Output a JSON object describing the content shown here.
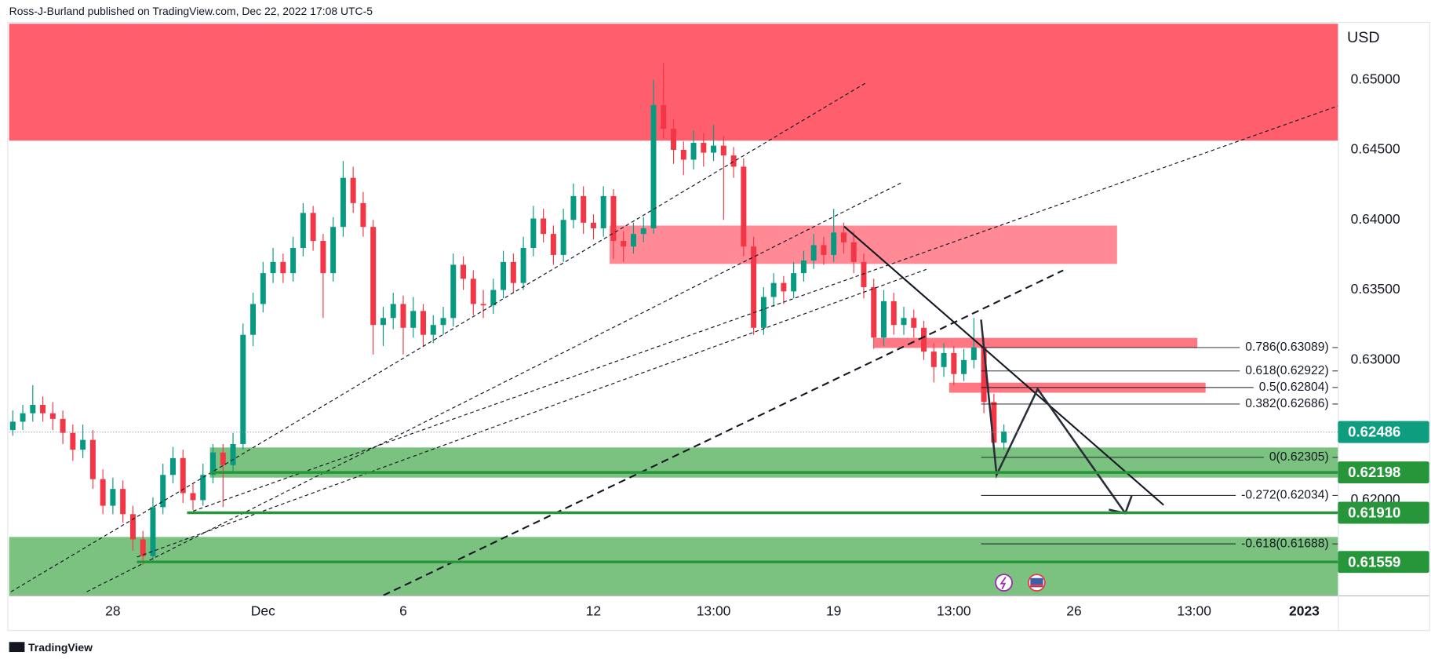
{
  "header": "Ross-J-Burland published on TradingView.com, Dec 22, 2022 17:08 UTC-5",
  "footer": "TradingView",
  "chart_data": {
    "type": "candlestick",
    "y_axis_label": "USD",
    "up_color": "#089981",
    "down_color": "#f23645",
    "ylim": [
      0.6132,
      0.654
    ],
    "yticks": [
      {
        "value": 0.65,
        "label": "0.65000"
      },
      {
        "value": 0.645,
        "label": "0.64500"
      },
      {
        "value": 0.64,
        "label": "0.64000"
      },
      {
        "value": 0.635,
        "label": "0.63500"
      },
      {
        "value": 0.63,
        "label": "0.63000"
      },
      {
        "value": 0.62,
        "label": "0.62000"
      }
    ],
    "categories": [
      null,
      null,
      null,
      null,
      null,
      null,
      null,
      null,
      null,
      null,
      "28",
      null,
      null,
      null,
      null,
      null,
      null,
      null,
      null,
      null,
      null,
      null,
      null,
      null,
      null,
      "Dec",
      null,
      null,
      null,
      null,
      null,
      null,
      null,
      null,
      null,
      null,
      null,
      null,
      null,
      "6",
      null,
      null,
      null,
      null,
      null,
      null,
      null,
      null,
      null,
      null,
      null,
      null,
      null,
      null,
      null,
      null,
      null,
      null,
      "12",
      null,
      null,
      null,
      null,
      null,
      null,
      null,
      null,
      null,
      null,
      null,
      "13:00",
      null,
      null,
      null,
      null,
      null,
      null,
      null,
      null,
      null,
      null,
      null,
      "19",
      null,
      null,
      null,
      null,
      null,
      null,
      null,
      null,
      null,
      null,
      null,
      "13:00",
      null,
      null,
      null,
      null,
      null,
      null,
      null,
      null,
      null,
      null,
      null,
      "26",
      null,
      null,
      null,
      null,
      null,
      null,
      null,
      null,
      null,
      null,
      null,
      "13:00",
      null,
      null,
      null,
      null,
      null,
      null,
      null,
      null,
      null,
      null,
      "2023",
      null
    ],
    "ohlc": [
      [
        0.625,
        0.6264,
        0.6246,
        0.6256
      ],
      [
        0.6256,
        0.6268,
        0.625,
        0.6262
      ],
      [
        0.6262,
        0.6282,
        0.6256,
        0.6268
      ],
      [
        0.6268,
        0.6274,
        0.6256,
        0.6262
      ],
      [
        0.6262,
        0.627,
        0.625,
        0.6258
      ],
      [
        0.6258,
        0.6264,
        0.624,
        0.6248
      ],
      [
        0.6248,
        0.6254,
        0.6228,
        0.6236
      ],
      [
        0.6236,
        0.6254,
        0.623,
        0.6243
      ],
      [
        0.6243,
        0.625,
        0.6208,
        0.6215
      ],
      [
        0.6215,
        0.6222,
        0.619,
        0.6196
      ],
      [
        0.6196,
        0.6216,
        0.619,
        0.6208
      ],
      [
        0.6208,
        0.6214,
        0.6184,
        0.619
      ],
      [
        0.619,
        0.6196,
        0.6164,
        0.6172
      ],
      [
        0.6172,
        0.6178,
        0.6154,
        0.616
      ],
      [
        0.616,
        0.6202,
        0.6156,
        0.6195
      ],
      [
        0.6195,
        0.6226,
        0.619,
        0.6218
      ],
      [
        0.6218,
        0.6238,
        0.6212,
        0.623
      ],
      [
        0.623,
        0.6236,
        0.6198,
        0.6205
      ],
      [
        0.6205,
        0.6212,
        0.6193,
        0.62
      ],
      [
        0.62,
        0.6226,
        0.6196,
        0.6218
      ],
      [
        0.6218,
        0.624,
        0.6212,
        0.6234
      ],
      [
        0.6234,
        0.624,
        0.6195,
        0.6225
      ],
      [
        0.6225,
        0.6248,
        0.622,
        0.624
      ],
      [
        0.624,
        0.6326,
        0.6236,
        0.6318
      ],
      [
        0.6318,
        0.6348,
        0.631,
        0.634
      ],
      [
        0.634,
        0.637,
        0.6334,
        0.6362
      ],
      [
        0.6362,
        0.638,
        0.6355,
        0.637
      ],
      [
        0.637,
        0.6376,
        0.6355,
        0.6362
      ],
      [
        0.6362,
        0.6388,
        0.6356,
        0.638
      ],
      [
        0.638,
        0.6412,
        0.6374,
        0.6405
      ],
      [
        0.6405,
        0.641,
        0.6378,
        0.6385
      ],
      [
        0.6385,
        0.639,
        0.633,
        0.6362
      ],
      [
        0.6362,
        0.6402,
        0.6356,
        0.6395
      ],
      [
        0.6395,
        0.6442,
        0.6388,
        0.643
      ],
      [
        0.643,
        0.6438,
        0.6405,
        0.6412
      ],
      [
        0.6412,
        0.642,
        0.6388,
        0.6395
      ],
      [
        0.6395,
        0.64,
        0.6304,
        0.6325
      ],
      [
        0.6325,
        0.6338,
        0.631,
        0.633
      ],
      [
        0.633,
        0.6348,
        0.6322,
        0.634
      ],
      [
        0.634,
        0.6346,
        0.6304,
        0.6323
      ],
      [
        0.6323,
        0.6345,
        0.6316,
        0.6335
      ],
      [
        0.6335,
        0.634,
        0.631,
        0.6318
      ],
      [
        0.6318,
        0.6332,
        0.6312,
        0.6325
      ],
      [
        0.6325,
        0.6338,
        0.6318,
        0.633
      ],
      [
        0.633,
        0.6376,
        0.6324,
        0.6368
      ],
      [
        0.6368,
        0.6374,
        0.635,
        0.6358
      ],
      [
        0.6358,
        0.6364,
        0.6332,
        0.634
      ],
      [
        0.634,
        0.635,
        0.633,
        0.6339
      ],
      [
        0.6339,
        0.6358,
        0.6333,
        0.635
      ],
      [
        0.635,
        0.6378,
        0.6344,
        0.637
      ],
      [
        0.637,
        0.6376,
        0.6348,
        0.6355
      ],
      [
        0.6355,
        0.6388,
        0.635,
        0.638
      ],
      [
        0.638,
        0.641,
        0.6374,
        0.6401
      ],
      [
        0.6401,
        0.6408,
        0.6384,
        0.639
      ],
      [
        0.639,
        0.6396,
        0.6368,
        0.6375
      ],
      [
        0.6375,
        0.6408,
        0.637,
        0.64
      ],
      [
        0.64,
        0.6426,
        0.6394,
        0.6417
      ],
      [
        0.6417,
        0.6424,
        0.639,
        0.6398
      ],
      [
        0.6398,
        0.6404,
        0.6386,
        0.6394
      ],
      [
        0.6394,
        0.6424,
        0.6388,
        0.6417
      ],
      [
        0.6417,
        0.6422,
        0.6372,
        0.6385
      ],
      [
        0.6385,
        0.6392,
        0.637,
        0.6381
      ],
      [
        0.6381,
        0.6398,
        0.6376,
        0.639
      ],
      [
        0.639,
        0.6402,
        0.6384,
        0.6394
      ],
      [
        0.6394,
        0.65,
        0.639,
        0.6482
      ],
      [
        0.6482,
        0.6512,
        0.6458,
        0.6465
      ],
      [
        0.6465,
        0.6472,
        0.644,
        0.645
      ],
      [
        0.645,
        0.6456,
        0.6432,
        0.6443
      ],
      [
        0.6443,
        0.6464,
        0.6436,
        0.6455
      ],
      [
        0.6455,
        0.6462,
        0.6438,
        0.6448
      ],
      [
        0.6448,
        0.6468,
        0.6442,
        0.6453
      ],
      [
        0.6453,
        0.646,
        0.64,
        0.6446
      ],
      [
        0.6446,
        0.6452,
        0.643,
        0.6438
      ],
      [
        0.6438,
        0.6444,
        0.6374,
        0.6381
      ],
      [
        0.6381,
        0.6388,
        0.6318,
        0.6323
      ],
      [
        0.6323,
        0.6352,
        0.6318,
        0.6345
      ],
      [
        0.6345,
        0.6362,
        0.6338,
        0.6355
      ],
      [
        0.6355,
        0.636,
        0.634,
        0.6349
      ],
      [
        0.6349,
        0.637,
        0.6344,
        0.6362
      ],
      [
        0.6362,
        0.6378,
        0.6356,
        0.6371
      ],
      [
        0.6371,
        0.639,
        0.6365,
        0.6382
      ],
      [
        0.6382,
        0.6388,
        0.6368,
        0.6375
      ],
      [
        0.6375,
        0.6408,
        0.637,
        0.6391
      ],
      [
        0.6391,
        0.6398,
        0.6376,
        0.6384
      ],
      [
        0.6384,
        0.6392,
        0.6362,
        0.637
      ],
      [
        0.637,
        0.6376,
        0.6344,
        0.6352
      ],
      [
        0.6352,
        0.6358,
        0.6308,
        0.6316
      ],
      [
        0.6316,
        0.635,
        0.631,
        0.6342
      ],
      [
        0.6342,
        0.6348,
        0.6318,
        0.6325
      ],
      [
        0.6325,
        0.6338,
        0.6318,
        0.633
      ],
      [
        0.633,
        0.6336,
        0.6316,
        0.6323
      ],
      [
        0.6323,
        0.6328,
        0.63,
        0.6306
      ],
      [
        0.6306,
        0.6312,
        0.6284,
        0.6295
      ],
      [
        0.6295,
        0.6312,
        0.6288,
        0.6305
      ],
      [
        0.6305,
        0.631,
        0.6282,
        0.629
      ],
      [
        0.629,
        0.6308,
        0.6285,
        0.63
      ],
      [
        0.63,
        0.633,
        0.6294,
        0.6309
      ],
      [
        0.6309,
        0.6316,
        0.6262,
        0.627
      ],
      [
        0.627,
        0.6276,
        0.6234,
        0.6241
      ],
      [
        0.6241,
        0.6254,
        0.6236,
        0.6249
      ],
      null,
      null,
      null,
      null,
      null,
      null,
      null,
      null,
      null,
      null,
      null,
      null,
      null,
      null,
      null,
      null,
      null,
      null,
      null,
      null,
      null,
      null,
      null,
      null,
      null,
      null,
      null,
      null,
      null,
      null,
      null
    ],
    "price_lines": [
      {
        "value": 0.62486,
        "color": "#0f9d80",
        "style": "dotted"
      },
      {
        "value": 0.62198,
        "color": "#27963a",
        "style": "solid"
      },
      {
        "value": 0.6191,
        "label": "0.61910",
        "color": "#27963a",
        "style": "solid"
      },
      {
        "value": 0.61559,
        "color": "#27963a",
        "style": "solid"
      }
    ],
    "fib_levels": [
      {
        "value": 0.63089,
        "label": "0.786(0.63089)"
      },
      {
        "value": 0.62922,
        "label": "0.618(0.62922)"
      },
      {
        "value": 0.62804,
        "label": "0.5(0.62804)"
      },
      {
        "value": 0.62686,
        "label": "0.382(0.62686)"
      },
      {
        "value": 0.62305,
        "label": "0(0.62305)"
      },
      {
        "value": 0.62034,
        "label": "-0.272(0.62034)"
      },
      {
        "value": 0.61688,
        "label": "-0.618(0.61688)"
      }
    ]
  }
}
